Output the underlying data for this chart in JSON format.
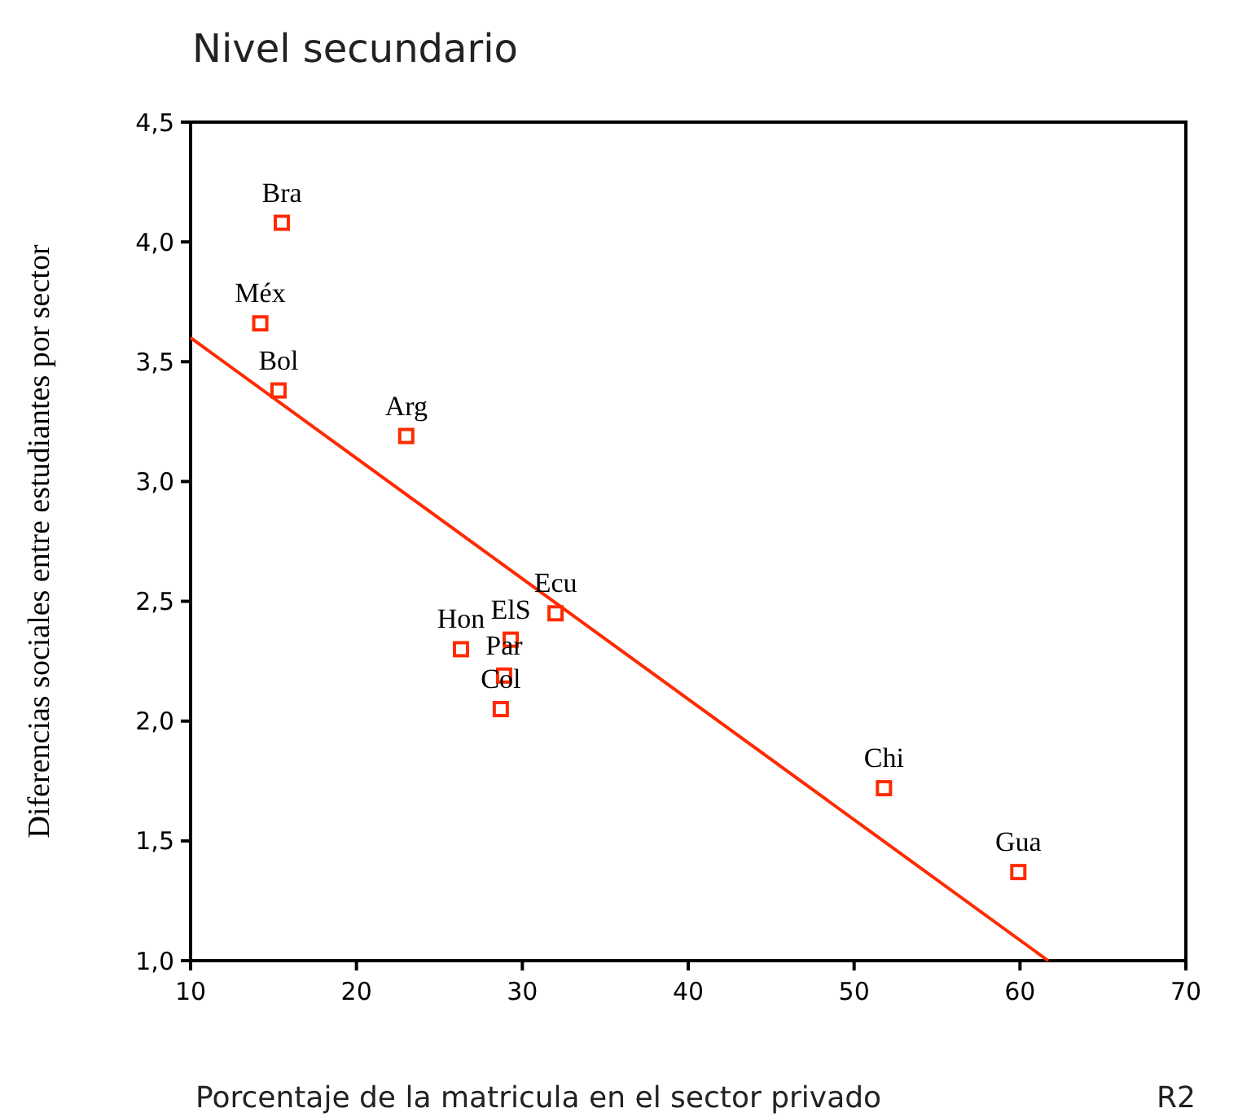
{
  "chart_data": {
    "type": "scatter",
    "title": "Nivel secundario",
    "xlabel": "Porcentaje de la matricula en el sector privado",
    "ylabel": "Diferencias sociales entre estudiantes por sector",
    "xlim": [
      10,
      70
    ],
    "xticks": [
      10,
      20,
      30,
      40,
      50,
      60,
      70
    ],
    "ylim": [
      1,
      4.5
    ],
    "yticks": [
      {
        "value": 1,
        "label": "1,0"
      },
      {
        "value": 1.5,
        "label": "1,5"
      },
      {
        "value": 2,
        "label": "2,0"
      },
      {
        "value": 2.5,
        "label": "2,5"
      },
      {
        "value": 3,
        "label": "3,0"
      },
      {
        "value": 3.5,
        "label": "3,5"
      },
      {
        "value": 4,
        "label": "4,0"
      },
      {
        "value": 4.5,
        "label": "4,5"
      }
    ],
    "grid": false,
    "series": [
      {
        "marker": "square",
        "color": "#ff2a00",
        "x": [
          15.5,
          14.2,
          15.3,
          23.0,
          26.3,
          29.3,
          28.9,
          28.7,
          32.0,
          51.8,
          59.9
        ],
        "values": [
          4.08,
          3.66,
          3.38,
          3.19,
          2.3,
          2.34,
          2.19,
          2.05,
          2.45,
          1.72,
          1.37
        ]
      },
      {
        "type": "line",
        "color": "#ff2a00",
        "x": [
          10,
          61.7
        ],
        "values": [
          3.6,
          1.0
        ]
      }
    ],
    "annotations": [
      {
        "text": "Bra",
        "x": 15.5,
        "y": 4.08
      },
      {
        "text": "Méx",
        "x": 14.2,
        "y": 3.66
      },
      {
        "text": "Bol",
        "x": 15.3,
        "y": 3.38
      },
      {
        "text": "Arg",
        "x": 23.0,
        "y": 3.19
      },
      {
        "text": "Hon",
        "x": 26.3,
        "y": 2.3
      },
      {
        "text": "ElS",
        "x": 29.3,
        "y": 2.34
      },
      {
        "text": "Par",
        "x": 28.9,
        "y": 2.19
      },
      {
        "text": "Col",
        "x": 28.7,
        "y": 2.05
      },
      {
        "text": "Ecu",
        "x": 32.0,
        "y": 2.45
      },
      {
        "text": "Chi",
        "x": 51.8,
        "y": 1.72
      },
      {
        "text": "Gua",
        "x": 59.9,
        "y": 1.37
      },
      "R2"
    ]
  }
}
